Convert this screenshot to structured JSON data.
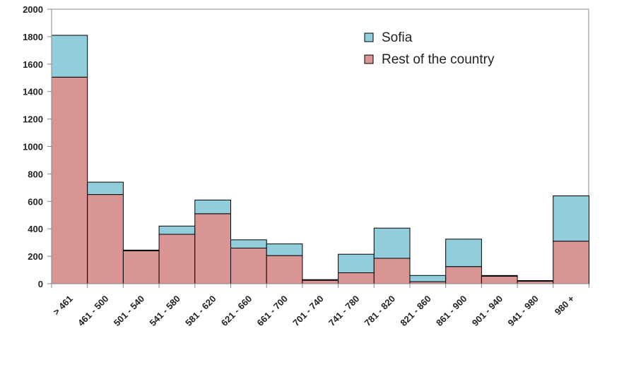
{
  "chart_data": {
    "type": "bar",
    "stacked": true,
    "categories": [
      "> 461",
      "461 - 500",
      "501 - 540",
      "541 - 580",
      "581 - 620",
      "621 - 660",
      "661 - 700",
      "701 - 740",
      "741 - 780",
      "781 - 820",
      "821 - 860",
      "861 - 900",
      "901 - 940",
      "941 - 980",
      "980 +"
    ],
    "series": [
      {
        "name": "Rest of the country",
        "color": "#d99594",
        "values": [
          1505,
          650,
          240,
          360,
          510,
          260,
          205,
          25,
          80,
          185,
          15,
          125,
          55,
          18,
          310
        ]
      },
      {
        "name": "Sofia",
        "color": "#92cddc",
        "values": [
          305,
          90,
          5,
          60,
          100,
          60,
          85,
          5,
          135,
          220,
          45,
          200,
          5,
          5,
          330
        ]
      }
    ],
    "ylim": [
      0,
      2000
    ],
    "yticks": [
      "0",
      "200",
      "400",
      "600",
      "800",
      "1000",
      "1200",
      "1400",
      "1600",
      "1800",
      "2000"
    ],
    "legend": {
      "position": "top-right",
      "order": [
        "Sofia",
        "Rest of the country"
      ]
    },
    "grid": false
  }
}
